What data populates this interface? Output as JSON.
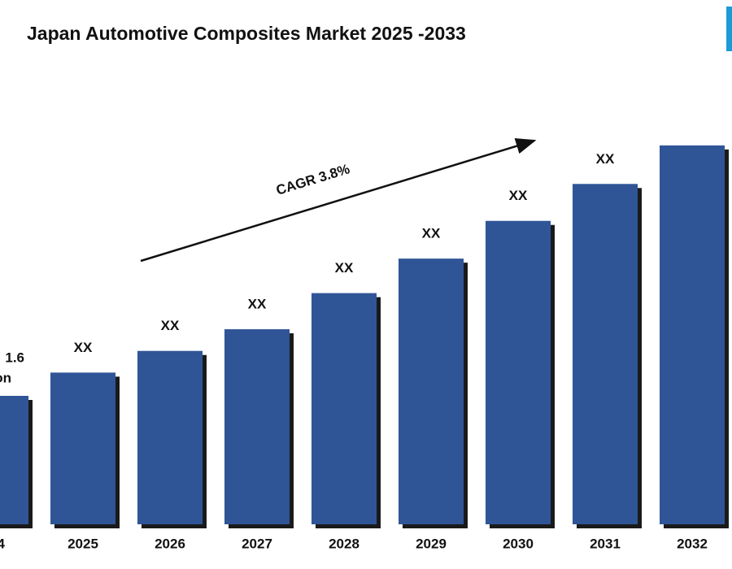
{
  "chart_data": {
    "type": "bar",
    "title": "Japan Automotive Composites Market  2025 -2033",
    "categories": [
      "4",
      "2025",
      "2026",
      "2027",
      "2028",
      "2029",
      "2030",
      "2031",
      "2032"
    ],
    "values": [
      1.6,
      1.89,
      2.16,
      2.43,
      2.88,
      3.31,
      3.78,
      4.24,
      4.72
    ],
    "value_labels": [
      "1.6",
      "XX",
      "XX",
      "XX",
      "XX",
      "XX",
      "XX",
      "XX",
      null
    ],
    "unit_fragment": "on",
    "annotation": "CAGR 3.8%",
    "color": "#2f5597"
  }
}
